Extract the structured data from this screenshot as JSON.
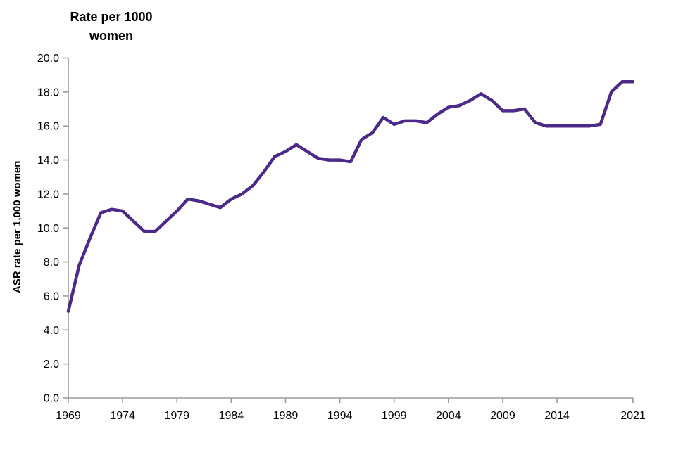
{
  "chart_data": {
    "type": "line",
    "title_line1": "Rate per 1000",
    "title_line2": "women",
    "y_axis_title": "ASR rate per 1,000 women",
    "x": [
      1969,
      1970,
      1971,
      1972,
      1973,
      1974,
      1975,
      1976,
      1977,
      1978,
      1979,
      1980,
      1981,
      1982,
      1983,
      1984,
      1985,
      1986,
      1987,
      1988,
      1989,
      1990,
      1991,
      1992,
      1993,
      1994,
      1995,
      1996,
      1997,
      1998,
      1999,
      2000,
      2001,
      2002,
      2003,
      2004,
      2005,
      2006,
      2007,
      2008,
      2009,
      2010,
      2011,
      2012,
      2013,
      2014,
      2015,
      2016,
      2017,
      2018,
      2019,
      2020,
      2021
    ],
    "series": [
      {
        "name": "ASR rate per 1,000 women",
        "values": [
          5.1,
          7.8,
          9.4,
          10.9,
          11.1,
          11.0,
          10.4,
          9.8,
          9.8,
          10.4,
          11.0,
          11.7,
          11.6,
          11.4,
          11.2,
          11.7,
          12.0,
          12.5,
          13.3,
          14.2,
          14.5,
          14.9,
          14.5,
          14.1,
          14.0,
          14.0,
          13.9,
          15.2,
          15.6,
          16.5,
          16.1,
          16.3,
          16.3,
          16.2,
          16.7,
          17.1,
          17.2,
          17.5,
          17.9,
          17.5,
          16.9,
          16.9,
          17.0,
          16.2,
          16.0,
          16.0,
          16.0,
          16.0,
          16.0,
          16.1,
          18.0,
          18.6,
          18.6
        ]
      }
    ],
    "x_tick_labels": [
      1969,
      1974,
      1979,
      1984,
      1989,
      1994,
      1999,
      2004,
      2009,
      2014,
      2021
    ],
    "y_ticks": [
      0,
      2,
      4,
      6,
      8,
      10,
      12,
      14,
      16,
      18,
      20
    ],
    "y_tick_format_decimals": 1,
    "ylim": [
      0,
      20
    ],
    "grid": false,
    "legend": "none",
    "line_color": "#4B2A8A",
    "axis_color": "#9B9B9B",
    "text_color": "#000000"
  }
}
